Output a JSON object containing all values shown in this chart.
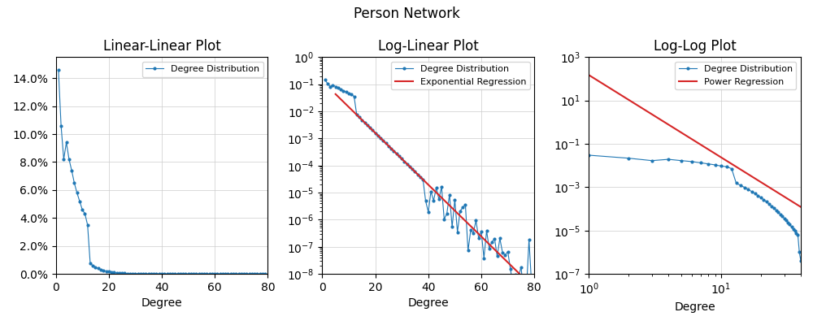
{
  "title": "Person Network",
  "subplot_titles": [
    "Linear-Linear Plot",
    "Log-Linear Plot",
    "Log-Log Plot"
  ],
  "xlabel": "Degree",
  "legend_labels": {
    "dist": "Degree Distribution",
    "exp_reg": "Exponential Regression",
    "pow_reg": "Power Regression"
  },
  "line_color": "#1f77b4",
  "reg_color": "#d62728",
  "marker": "o",
  "markersize": 2,
  "linewidth": 0.8,
  "exp_reg": {
    "a": 0.13,
    "b": -0.22
  },
  "pow_reg": {
    "a": 150.0,
    "gamma": 3.8
  },
  "xlim_linear": [
    0,
    80
  ],
  "xlim_loglinear": [
    0,
    80
  ],
  "xlim_loglog": [
    1,
    40
  ],
  "ylim_linear": [
    0.0,
    0.155
  ],
  "ylim_loglinear": [
    1e-08,
    1.0
  ],
  "ylim_loglog": [
    1e-07,
    1000.0
  ]
}
